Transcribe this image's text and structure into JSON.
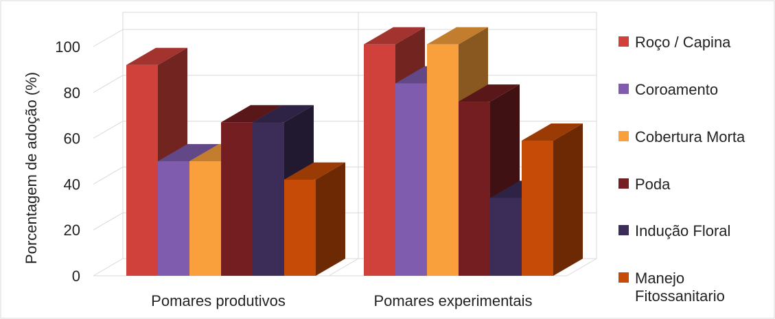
{
  "chart_data": {
    "type": "bar",
    "title": "",
    "xlabel": "",
    "ylabel": "Porcentagem de adoção (%)",
    "categories": [
      "Pomares produtivos",
      "Pomares experimentais"
    ],
    "yticks": [
      "0",
      "20",
      "40",
      "60",
      "80",
      "100"
    ],
    "ylim": [
      0,
      100
    ],
    "grid": true,
    "legend": "right",
    "series": [
      {
        "name": "Roço / Capina",
        "color": "#D0413B",
        "values": [
          92,
          101
        ]
      },
      {
        "name": "Coroamento",
        "color": "#7F5CAE",
        "values": [
          50,
          84
        ]
      },
      {
        "name": "Cobertura Morta",
        "color": "#F9A03C",
        "values": [
          50,
          101
        ]
      },
      {
        "name": "Poda",
        "color": "#741E21",
        "values": [
          67,
          76
        ]
      },
      {
        "name": "Indução Floral",
        "color": "#3B2D57",
        "values": [
          67,
          34
        ]
      },
      {
        "name": "Manejo Fitossanitario",
        "legend_lines": [
          "Manejo",
          "Fitossanitario"
        ],
        "color": "#C64B06",
        "values": [
          42,
          59
        ]
      }
    ]
  }
}
